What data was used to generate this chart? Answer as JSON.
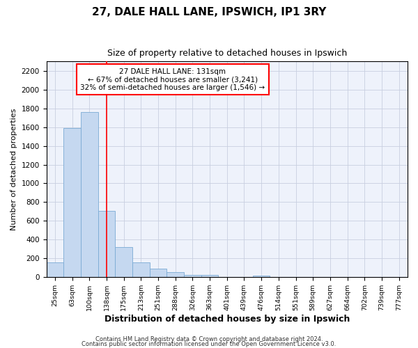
{
  "title1": "27, DALE HALL LANE, IPSWICH, IP1 3RY",
  "title2": "Size of property relative to detached houses in Ipswich",
  "xlabel": "Distribution of detached houses by size in Ipswich",
  "ylabel": "Number of detached properties",
  "categories": [
    "25sqm",
    "63sqm",
    "100sqm",
    "138sqm",
    "175sqm",
    "213sqm",
    "251sqm",
    "288sqm",
    "326sqm",
    "363sqm",
    "401sqm",
    "439sqm",
    "476sqm",
    "514sqm",
    "551sqm",
    "589sqm",
    "627sqm",
    "664sqm",
    "702sqm",
    "739sqm",
    "777sqm"
  ],
  "values": [
    160,
    1590,
    1760,
    710,
    320,
    155,
    90,
    50,
    25,
    25,
    0,
    0,
    20,
    0,
    0,
    0,
    0,
    0,
    0,
    0,
    0
  ],
  "bar_color": "#c5d8f0",
  "bar_edge_color": "#7aaad4",
  "red_line_index": 3.0,
  "annotation_text": "27 DALE HALL LANE: 131sqm\n← 67% of detached houses are smaller (3,241)\n32% of semi-detached houses are larger (1,546) →",
  "footer1": "Contains HM Land Registry data © Crown copyright and database right 2024.",
  "footer2": "Contains public sector information licensed under the Open Government Licence v3.0.",
  "background_color": "#eef2fb",
  "grid_color": "#c8cfe0",
  "ylim": [
    0,
    2300
  ],
  "yticks": [
    0,
    200,
    400,
    600,
    800,
    1000,
    1200,
    1400,
    1600,
    1800,
    2000,
    2200
  ]
}
